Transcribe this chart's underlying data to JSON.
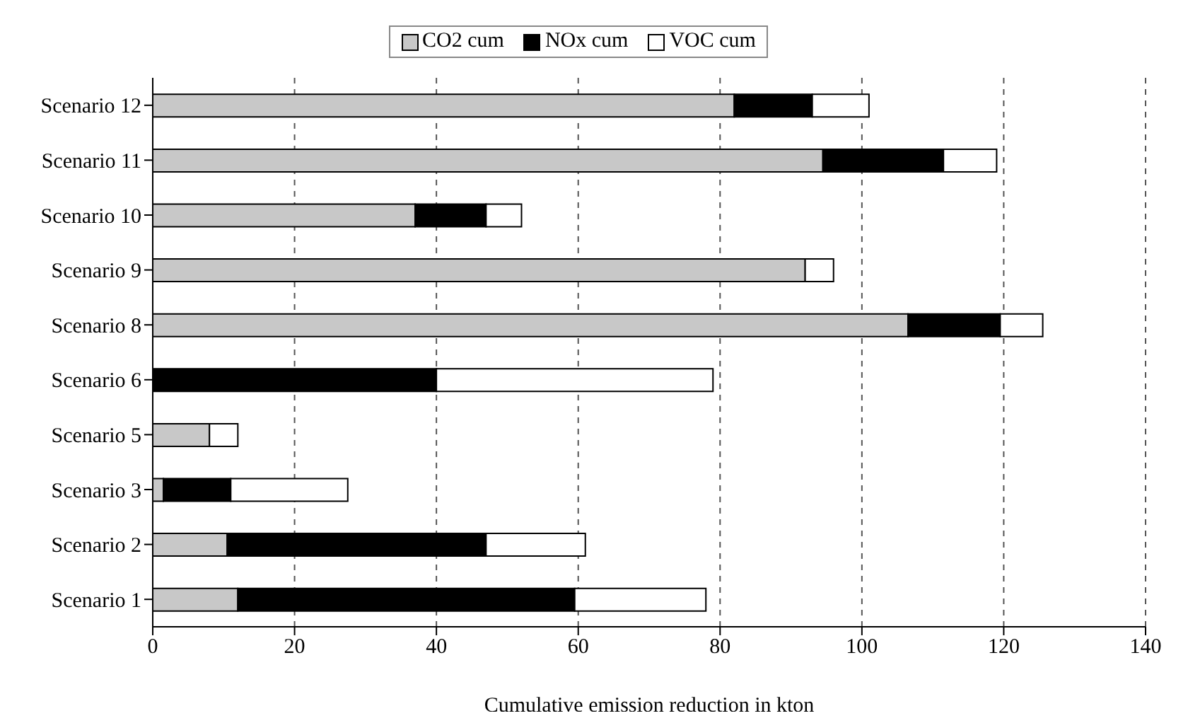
{
  "chart_data": {
    "type": "bar",
    "orientation": "horizontal",
    "stacked": true,
    "xlabel": "Cumulative emission reduction in kton",
    "categories": [
      "Scenario 12",
      "Scenario 11",
      "Scenario 10",
      "Scenario 9",
      "Scenario 8",
      "Scenario 6",
      "Scenario 5",
      "Scenario 3",
      "Scenario 2",
      "Scenario 1"
    ],
    "series": [
      {
        "name": "CO2 cum",
        "color": "#c8c8c8",
        "values": [
          82,
          94.5,
          37,
          92,
          106.5,
          0,
          8,
          1.5,
          10.5,
          12
        ]
      },
      {
        "name": "NOx cum",
        "color": "#000000",
        "values": [
          11,
          17,
          10,
          0,
          13,
          40,
          0,
          9.5,
          36.5,
          47.5
        ]
      },
      {
        "name": "VOC cum",
        "color": "#ffffff",
        "values": [
          8,
          7.5,
          5,
          4,
          6,
          39,
          4,
          16.5,
          14,
          18.5
        ]
      }
    ],
    "xlim": [
      0,
      140
    ],
    "xticks": [
      0,
      20,
      40,
      60,
      80,
      100,
      120,
      140
    ],
    "grid": "x",
    "legend": "top"
  }
}
